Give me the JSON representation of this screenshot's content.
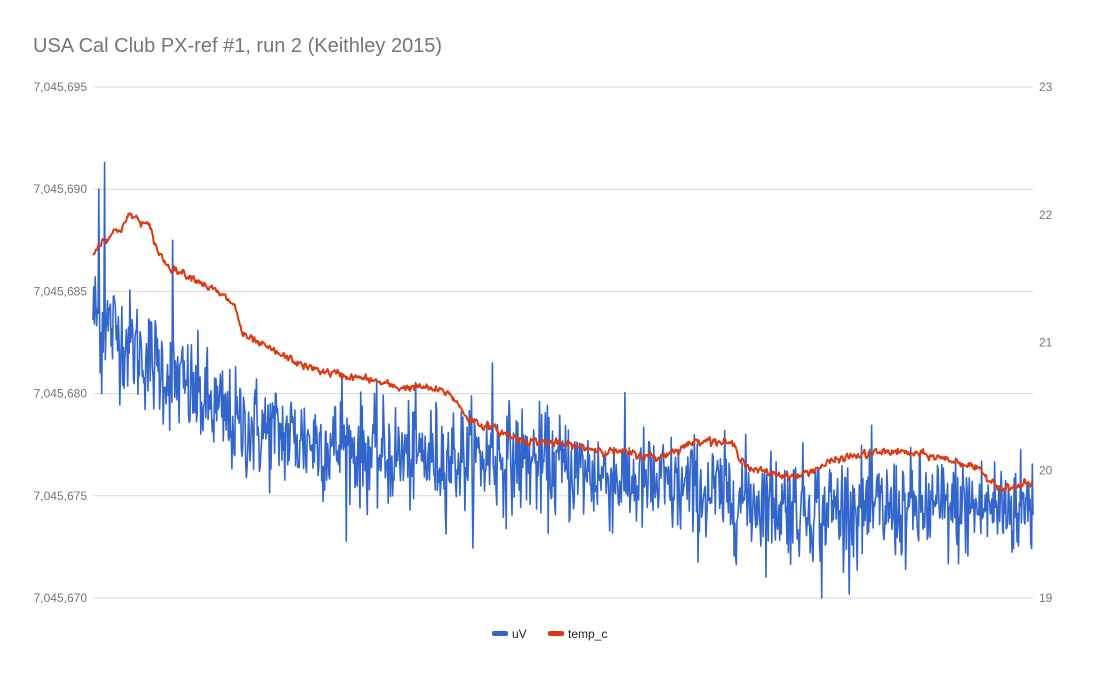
{
  "chart_data": {
    "type": "line",
    "title": "USA Cal Club PX-ref #1, run 2 (Keithley 2015)",
    "grid": true,
    "legend": "bottom",
    "x_points": 1300,
    "y_left": {
      "ylim": [
        7045670,
        7045695
      ],
      "ticks": [
        7045670,
        7045675,
        7045680,
        7045685,
        7045690,
        7045695
      ],
      "tick_labels": [
        "7,045,670",
        "7,045,675",
        "7,045,680",
        "7,045,685",
        "7,045,690",
        "7,045,695"
      ]
    },
    "y_right": {
      "ylim": [
        19,
        23
      ],
      "ticks": [
        19,
        20,
        21,
        22,
        23
      ],
      "tick_labels": [
        "19",
        "20",
        "21",
        "22",
        "23"
      ]
    },
    "series": [
      {
        "name": "uV",
        "axis": "left",
        "color": "#3366cc",
        "trend": [
          [
            0,
            7045684.0
          ],
          [
            0.05,
            7045682.0
          ],
          [
            0.15,
            7045678.5
          ],
          [
            0.3,
            7045677.0
          ],
          [
            0.45,
            7045676.8
          ],
          [
            0.6,
            7045675.5
          ],
          [
            0.75,
            7045674.5
          ],
          [
            0.85,
            7045674.3
          ],
          [
            1.0,
            7045674.5
          ]
        ],
        "noise_sd_uV": 1.3,
        "spikes": [
          [
            0.012,
            7045691.3
          ],
          [
            0.006,
            7045690.0
          ],
          [
            0.009,
            7045680.0
          ],
          [
            0.085,
            7045687.5
          ],
          [
            0.265,
            7045681.0
          ],
          [
            0.425,
            7045681.5
          ],
          [
            0.775,
            7045670.0
          ]
        ]
      },
      {
        "name": "temp_c",
        "axis": "right",
        "color": "#dc3912",
        "trend": [
          [
            0,
            21.7
          ],
          [
            0.01,
            21.8
          ],
          [
            0.03,
            21.9
          ],
          [
            0.04,
            22.0
          ],
          [
            0.06,
            21.9
          ],
          [
            0.07,
            21.7
          ],
          [
            0.08,
            21.6
          ],
          [
            0.11,
            21.5
          ],
          [
            0.13,
            21.4
          ],
          [
            0.15,
            21.3
          ],
          [
            0.16,
            21.05
          ],
          [
            0.2,
            20.9
          ],
          [
            0.23,
            20.8
          ],
          [
            0.26,
            20.75
          ],
          [
            0.3,
            20.7
          ],
          [
            0.32,
            20.65
          ],
          [
            0.35,
            20.65
          ],
          [
            0.38,
            20.6
          ],
          [
            0.4,
            20.4
          ],
          [
            0.45,
            20.25
          ],
          [
            0.5,
            20.2
          ],
          [
            0.55,
            20.15
          ],
          [
            0.6,
            20.1
          ],
          [
            0.65,
            20.25
          ],
          [
            0.68,
            20.2
          ],
          [
            0.7,
            20.0
          ],
          [
            0.75,
            19.95
          ],
          [
            0.78,
            20.05
          ],
          [
            0.8,
            20.1
          ],
          [
            0.85,
            20.15
          ],
          [
            0.9,
            20.1
          ],
          [
            0.93,
            20.05
          ],
          [
            0.95,
            19.95
          ],
          [
            0.97,
            19.85
          ],
          [
            1.0,
            19.9
          ]
        ],
        "noise_sd_c": 0.015
      }
    ]
  }
}
